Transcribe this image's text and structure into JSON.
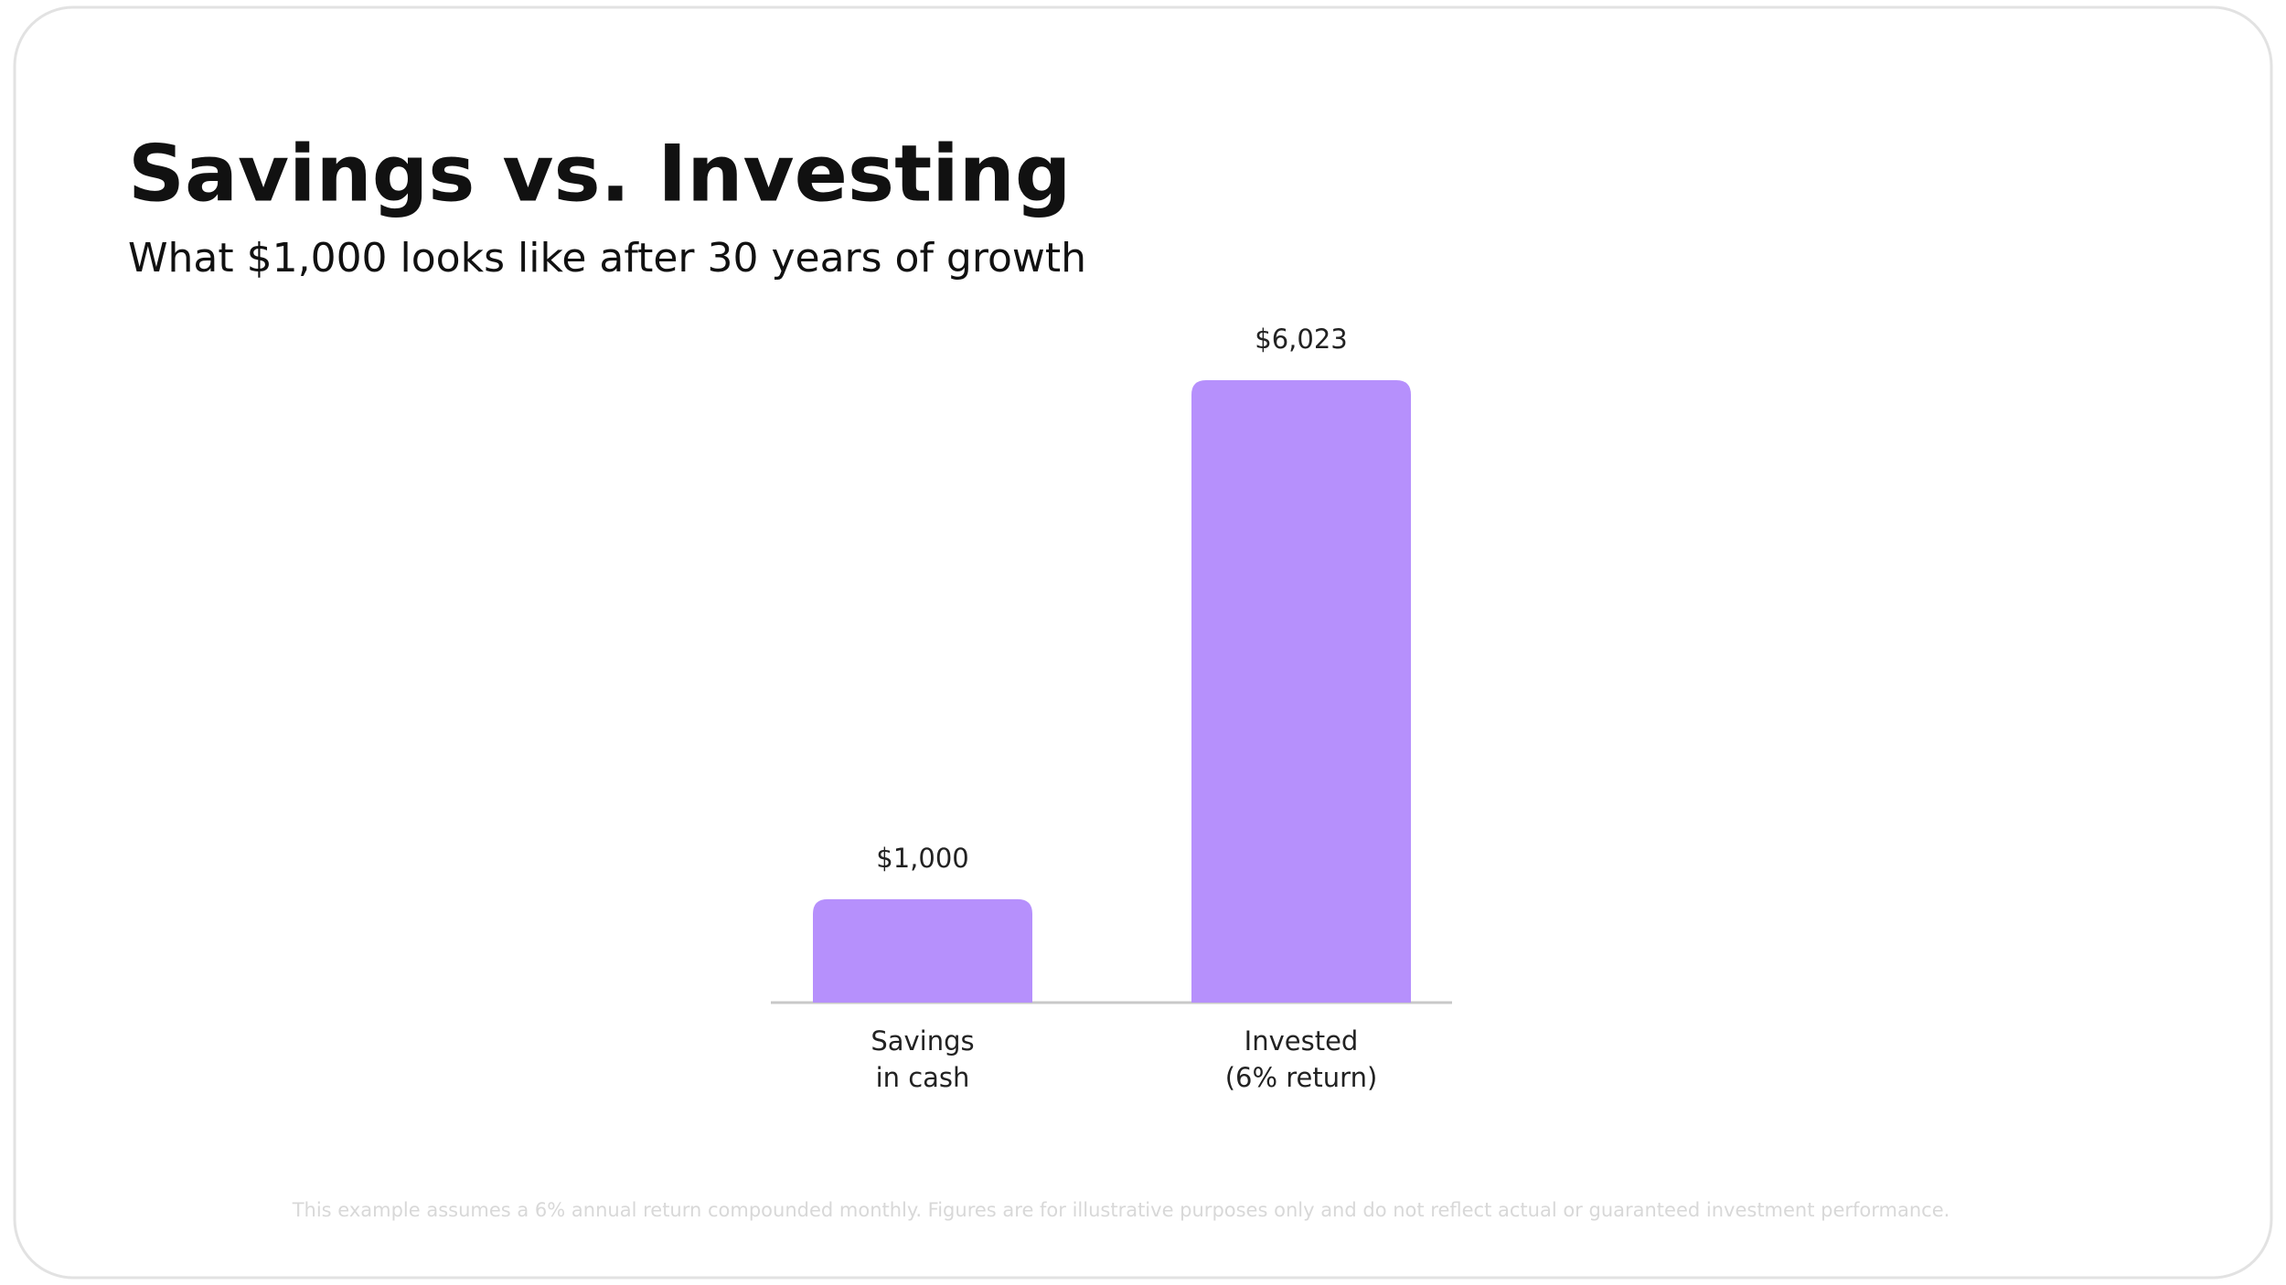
{
  "chart_data": {
    "type": "bar",
    "title": "Savings vs. Investing",
    "subtitle": "What $1,000 looks like after 30 years of growth",
    "categories": [
      [
        "Savings",
        "in cash"
      ],
      [
        "Invested",
        "(6% return)"
      ]
    ],
    "values": [
      1000,
      6023
    ],
    "value_labels": [
      "$1,000",
      "$6,023"
    ],
    "color": "#b690fc",
    "footnote": "This example assumes a 6% annual return compounded monthly. Figures are for illustrative purposes only and do not reflect actual or guaranteed investment performance."
  }
}
